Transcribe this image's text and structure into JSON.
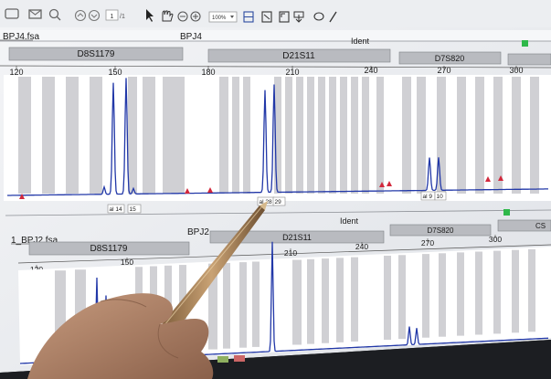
{
  "toolbar": {
    "page_current": "1",
    "page_total": "/1",
    "zoom": "100%"
  },
  "panel1": {
    "file": "BPJ4.fsa",
    "sample": "BPJ4",
    "ident": "Ident",
    "markers": [
      "D8S1179",
      "D21S11",
      "D7S820"
    ],
    "ticks": [
      "120",
      "150",
      "180",
      "210",
      "240",
      "270",
      "300"
    ],
    "alleles": [
      {
        "label": "al 14"
      },
      {
        "label": "15"
      },
      {
        "label": "al 28"
      },
      {
        "label": "29"
      },
      {
        "label": "al 9"
      },
      {
        "label": "10"
      }
    ]
  },
  "panel2": {
    "file": "1_BPJ2.fsa",
    "sample": "BPJ2",
    "ident": "Ident",
    "markers": [
      "D8S1179",
      "D21S11",
      "D7S820",
      "CS"
    ],
    "ticks": [
      "120",
      "150",
      "210",
      "240",
      "270",
      "300"
    ]
  },
  "colors": {
    "trace": "#2238a8",
    "bin_gray": "#c8c8cc",
    "marker_bar": "#b9bbc0",
    "status_green": "#2fb84a",
    "peak_red": "#d2283c"
  }
}
